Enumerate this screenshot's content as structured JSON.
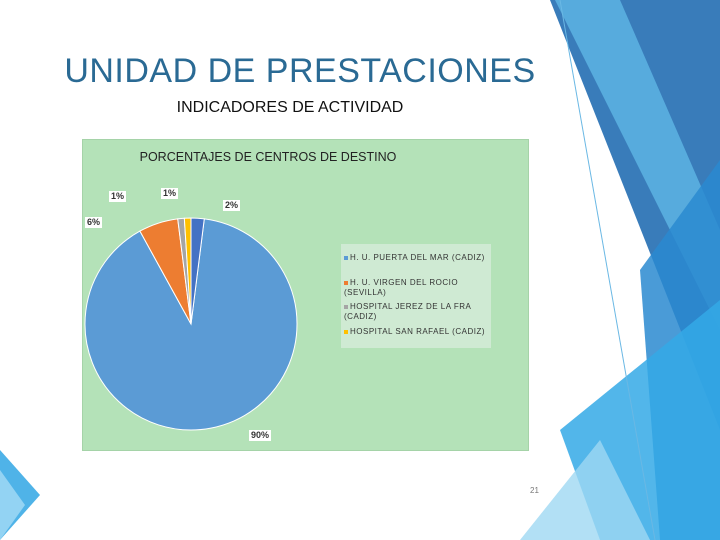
{
  "slide": {
    "title": "UNIDAD DE PRESTACIONES",
    "subtitle": "INDICADORES DE ACTIVIDAD",
    "page_number": "21"
  },
  "colors": {
    "title": "#2a6a94",
    "chart_bg": "#b4e2b8",
    "deco_blue": "#2e7ab8"
  },
  "chart_data": {
    "type": "pie",
    "title": "PORCENTAJES DE CENTROS DE DESTINO",
    "categories": [
      "H. U. PUERTA DEL MAR (CADIZ)",
      "H. U. VIRGEN DEL ROCIO (SEVILLA)",
      "HOSPITAL JEREZ DE LA FRA (CADIZ)",
      "HOSPITAL SAN RAFAEL (CADIZ)",
      ""
    ],
    "values": [
      90,
      6,
      1,
      1,
      2
    ],
    "labels": [
      "90%",
      "6%",
      "1%",
      "1%",
      "2%"
    ],
    "colors": [
      "#5b9bd5",
      "#ed7d31",
      "#a5a5a5",
      "#ffc000",
      "#4472c4"
    ],
    "legend_position": "right"
  }
}
